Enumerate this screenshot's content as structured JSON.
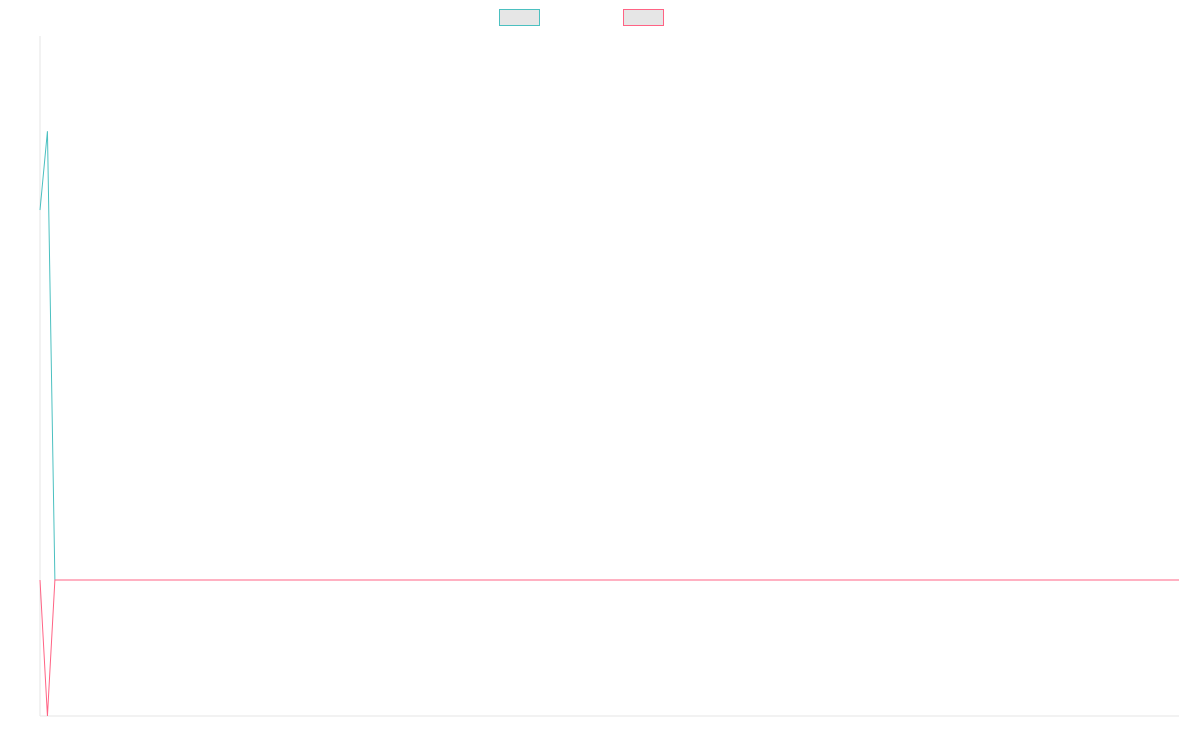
{
  "chart_data": {
    "type": "line",
    "title": "",
    "xlabel": "",
    "ylabel": "",
    "grid": false,
    "legend_position": "top-center",
    "x": [
      0,
      1,
      2,
      3,
      4,
      5,
      6,
      7,
      8,
      9,
      10,
      11,
      12,
      13,
      14,
      15,
      16,
      17,
      18,
      19,
      20,
      21,
      22,
      23,
      24,
      25,
      26,
      27,
      28,
      29,
      30,
      31,
      32,
      33,
      34,
      35,
      36,
      37,
      38,
      39,
      40,
      41,
      42,
      43,
      44,
      45,
      46,
      47,
      48,
      49,
      50,
      51,
      52,
      53,
      54,
      55,
      56,
      57,
      58,
      59,
      60,
      61,
      62,
      63,
      64,
      65,
      66,
      67,
      68,
      69,
      70,
      71,
      72,
      73,
      74,
      75,
      76,
      77,
      78,
      79,
      80,
      81,
      82,
      83,
      84,
      85,
      86,
      87,
      88,
      89,
      90,
      91,
      92,
      93,
      94,
      95,
      96,
      97,
      98,
      99,
      100,
      101,
      102,
      103,
      104,
      105,
      106,
      107,
      108,
      109,
      110,
      111,
      112,
      113,
      114,
      115,
      116,
      117,
      118,
      119,
      120,
      121,
      122,
      123,
      124,
      125,
      126,
      127,
      128,
      129,
      130,
      131,
      132,
      133,
      134,
      135,
      136,
      137,
      138,
      139,
      140,
      141,
      142,
      143,
      144,
      145,
      146,
      147,
      148,
      149,
      150,
      151,
      152,
      153
    ],
    "ylim": [
      -1,
      4
    ],
    "series": [
      {
        "name": "",
        "color": "#4bc0c0",
        "values": [
          2.72,
          3.3,
          0,
          0,
          0,
          0,
          0,
          0,
          0,
          0,
          0,
          0,
          0,
          0,
          0,
          0,
          0,
          0,
          0,
          0,
          0,
          0,
          0,
          0,
          0,
          0,
          0,
          0,
          0,
          0,
          0,
          0,
          0,
          0,
          0,
          0,
          0,
          0,
          0,
          0,
          0,
          0,
          0,
          0,
          0,
          0,
          0,
          0,
          0,
          0,
          0,
          0,
          0,
          0,
          0,
          0,
          0,
          0,
          0,
          0,
          0,
          0,
          0,
          0,
          0,
          0,
          0,
          0,
          0,
          0,
          0,
          0,
          0,
          0,
          0,
          0,
          0,
          0,
          0,
          0,
          0,
          0,
          0,
          0,
          0,
          0,
          0,
          0,
          0,
          0,
          0,
          0,
          0,
          0,
          0,
          0,
          0,
          0,
          0,
          0,
          0,
          0,
          0,
          0,
          0,
          0,
          0,
          0,
          0,
          0,
          0,
          0,
          0,
          0,
          0,
          0,
          0,
          0,
          0,
          0,
          0,
          0,
          0,
          0,
          0,
          0,
          0,
          0,
          0,
          0,
          0,
          0,
          0,
          0,
          0,
          0,
          0,
          0,
          0,
          0,
          0,
          0,
          0,
          0,
          0,
          0,
          0,
          0,
          0,
          0,
          0,
          0,
          0,
          0
        ]
      },
      {
        "name": "",
        "color": "#ff6384",
        "values": [
          0,
          -1,
          0,
          0,
          0,
          0,
          0,
          0,
          0,
          0,
          0,
          0,
          0,
          0,
          0,
          0,
          0,
          0,
          0,
          0,
          0,
          0,
          0,
          0,
          0,
          0,
          0,
          0,
          0,
          0,
          0,
          0,
          0,
          0,
          0,
          0,
          0,
          0,
          0,
          0,
          0,
          0,
          0,
          0,
          0,
          0,
          0,
          0,
          0,
          0,
          0,
          0,
          0,
          0,
          0,
          0,
          0,
          0,
          0,
          0,
          0,
          0,
          0,
          0,
          0,
          0,
          0,
          0,
          0,
          0,
          0,
          0,
          0,
          0,
          0,
          0,
          0,
          0,
          0,
          0,
          0,
          0,
          0,
          0,
          0,
          0,
          0,
          0,
          0,
          0,
          0,
          0,
          0,
          0,
          0,
          0,
          0,
          0,
          0,
          0,
          0,
          0,
          0,
          0,
          0,
          0,
          0,
          0,
          0,
          0,
          0,
          0,
          0,
          0,
          0,
          0,
          0,
          0,
          0,
          0,
          0,
          0,
          0,
          0,
          0,
          0,
          0,
          0,
          0,
          0,
          0,
          0,
          0,
          0,
          0,
          0,
          0,
          0,
          0,
          0,
          0,
          0,
          0,
          0,
          0,
          0,
          0,
          0,
          0,
          0,
          0,
          0,
          0,
          0
        ]
      }
    ]
  }
}
